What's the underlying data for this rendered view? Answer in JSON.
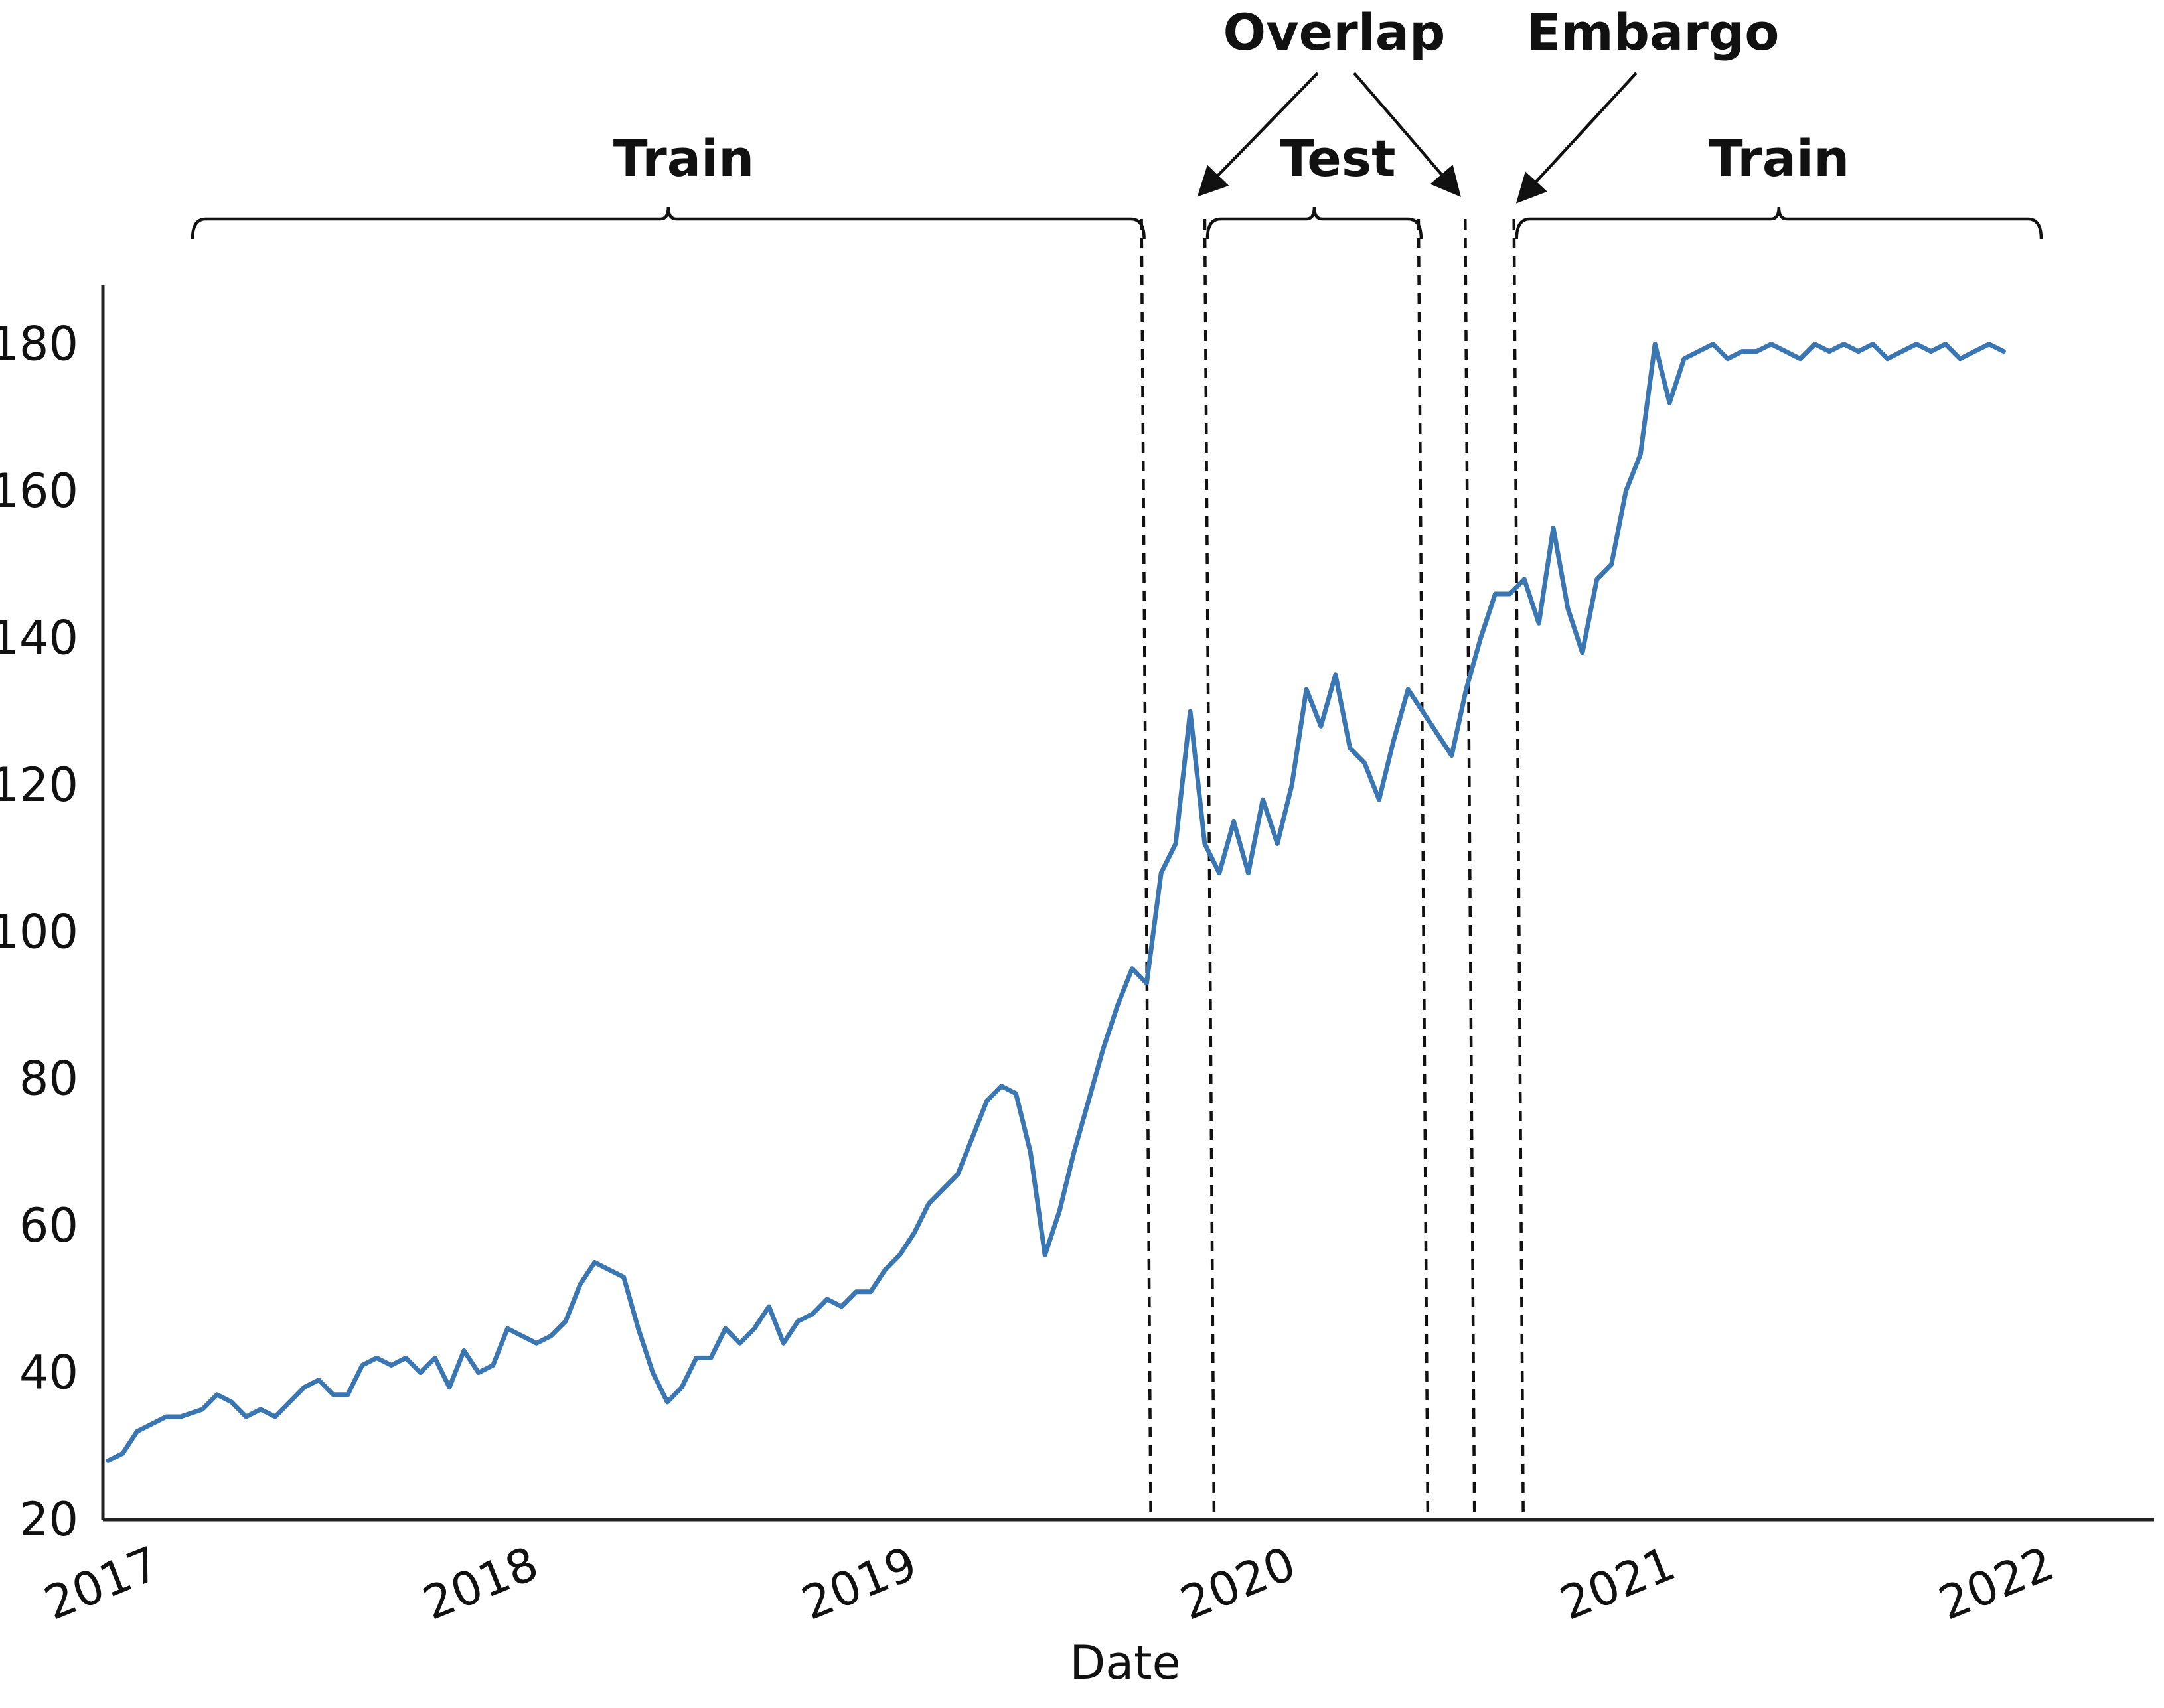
{
  "chart_data": {
    "type": "line",
    "xlabel": "Date",
    "ylabel": "",
    "xlim": [
      "2017-01-01",
      "2022-06-01"
    ],
    "ylim": [
      20,
      188
    ],
    "x_tick_labels": [
      "2017",
      "2018",
      "2019",
      "2020",
      "2021",
      "2022"
    ],
    "x_tick_dates": [
      "2017-01-01",
      "2018-01-01",
      "2019-01-01",
      "2020-01-01",
      "2021-01-01",
      "2022-01-01"
    ],
    "y_ticks": [
      20,
      40,
      60,
      80,
      100,
      120,
      140,
      160,
      180
    ],
    "grid": false,
    "line_color": "#3a76b2",
    "series": [
      {
        "x": [
          "2017-01-06",
          "2017-01-20",
          "2017-02-03",
          "2017-02-17",
          "2017-03-03",
          "2017-03-17",
          "2017-04-07",
          "2017-04-21",
          "2017-05-05",
          "2017-05-19",
          "2017-06-02",
          "2017-06-16",
          "2017-06-30",
          "2017-07-14",
          "2017-07-28",
          "2017-08-11",
          "2017-08-25",
          "2017-09-08",
          "2017-09-22",
          "2017-10-06",
          "2017-10-20",
          "2017-11-03",
          "2017-11-17",
          "2017-12-01",
          "2017-12-15",
          "2017-12-29",
          "2018-01-12",
          "2018-01-26",
          "2018-02-09",
          "2018-02-23",
          "2018-03-09",
          "2018-03-23",
          "2018-04-06",
          "2018-04-20",
          "2018-05-04",
          "2018-05-18",
          "2018-06-01",
          "2018-06-15",
          "2018-06-29",
          "2018-07-13",
          "2018-07-27",
          "2018-08-10",
          "2018-08-24",
          "2018-09-07",
          "2018-09-21",
          "2018-10-05",
          "2018-10-19",
          "2018-11-02",
          "2018-11-16",
          "2018-11-30",
          "2018-12-14",
          "2018-12-28",
          "2019-01-11",
          "2019-01-25",
          "2019-02-08",
          "2019-02-22",
          "2019-03-08",
          "2019-03-22",
          "2019-04-05",
          "2019-04-19",
          "2019-05-03",
          "2019-05-17",
          "2019-05-31",
          "2019-06-14",
          "2019-06-28",
          "2019-07-12",
          "2019-07-26",
          "2019-08-09",
          "2019-08-23",
          "2019-09-06",
          "2019-09-20",
          "2019-10-04",
          "2019-10-18",
          "2019-11-01",
          "2019-11-15",
          "2019-11-29",
          "2019-12-13",
          "2019-12-27",
          "2020-01-10",
          "2020-01-24",
          "2020-02-07",
          "2020-02-21",
          "2020-03-06",
          "2020-03-20",
          "2020-04-03",
          "2020-04-17",
          "2020-05-01",
          "2020-05-15",
          "2020-05-29",
          "2020-06-12",
          "2020-06-26",
          "2020-07-10",
          "2020-07-24",
          "2020-08-07",
          "2020-08-21",
          "2020-09-04",
          "2020-09-18",
          "2020-10-02",
          "2020-10-16",
          "2020-10-30",
          "2020-11-13",
          "2020-11-27",
          "2020-12-11",
          "2020-12-25",
          "2021-01-08",
          "2021-01-22",
          "2021-02-05",
          "2021-02-19",
          "2021-03-05",
          "2021-03-19",
          "2021-04-02",
          "2021-04-16",
          "2021-04-30",
          "2021-05-14",
          "2021-05-28",
          "2021-06-11",
          "2021-06-25",
          "2021-07-09",
          "2021-07-23",
          "2021-08-06",
          "2021-08-20",
          "2021-09-03",
          "2021-09-17",
          "2021-10-01",
          "2021-10-15",
          "2021-10-29",
          "2021-11-12",
          "2021-11-26",
          "2021-12-10",
          "2021-12-24",
          "2022-01-07"
        ],
        "y": [
          28,
          29,
          32,
          33,
          34,
          34,
          35,
          37,
          36,
          34,
          35,
          34,
          36,
          38,
          39,
          37,
          37,
          41,
          42,
          41,
          42,
          40,
          42,
          38,
          43,
          40,
          41,
          46,
          45,
          44,
          45,
          47,
          52,
          55,
          54,
          53,
          46,
          40,
          36,
          38,
          42,
          42,
          46,
          44,
          46,
          49,
          44,
          47,
          48,
          50,
          49,
          51,
          51,
          54,
          56,
          59,
          63,
          65,
          67,
          72,
          77,
          79,
          78,
          70,
          56,
          62,
          70,
          77,
          84,
          90,
          95,
          93,
          108,
          112,
          130,
          112,
          108,
          115,
          108,
          118,
          112,
          120,
          133,
          128,
          135,
          125,
          123,
          118,
          126,
          133,
          130,
          127,
          124,
          133,
          140,
          146,
          146,
          148,
          142,
          155,
          144,
          138,
          148,
          150,
          160,
          165,
          180,
          172,
          178,
          179,
          180,
          178,
          179,
          179,
          180,
          179,
          178,
          180,
          179,
          180,
          179,
          180,
          178,
          179,
          180,
          179,
          180,
          178,
          179,
          180,
          179
        ]
      }
    ],
    "splits": {
      "dashed_boundaries": [
        "2019-10-08",
        "2019-12-08",
        "2020-07-01",
        "2020-08-15",
        "2020-10-01"
      ]
    },
    "annotations": {
      "train_left": "Train",
      "test": "Test",
      "train_right": "Train",
      "overlap": "Overlap",
      "embargo": "Embargo"
    }
  }
}
